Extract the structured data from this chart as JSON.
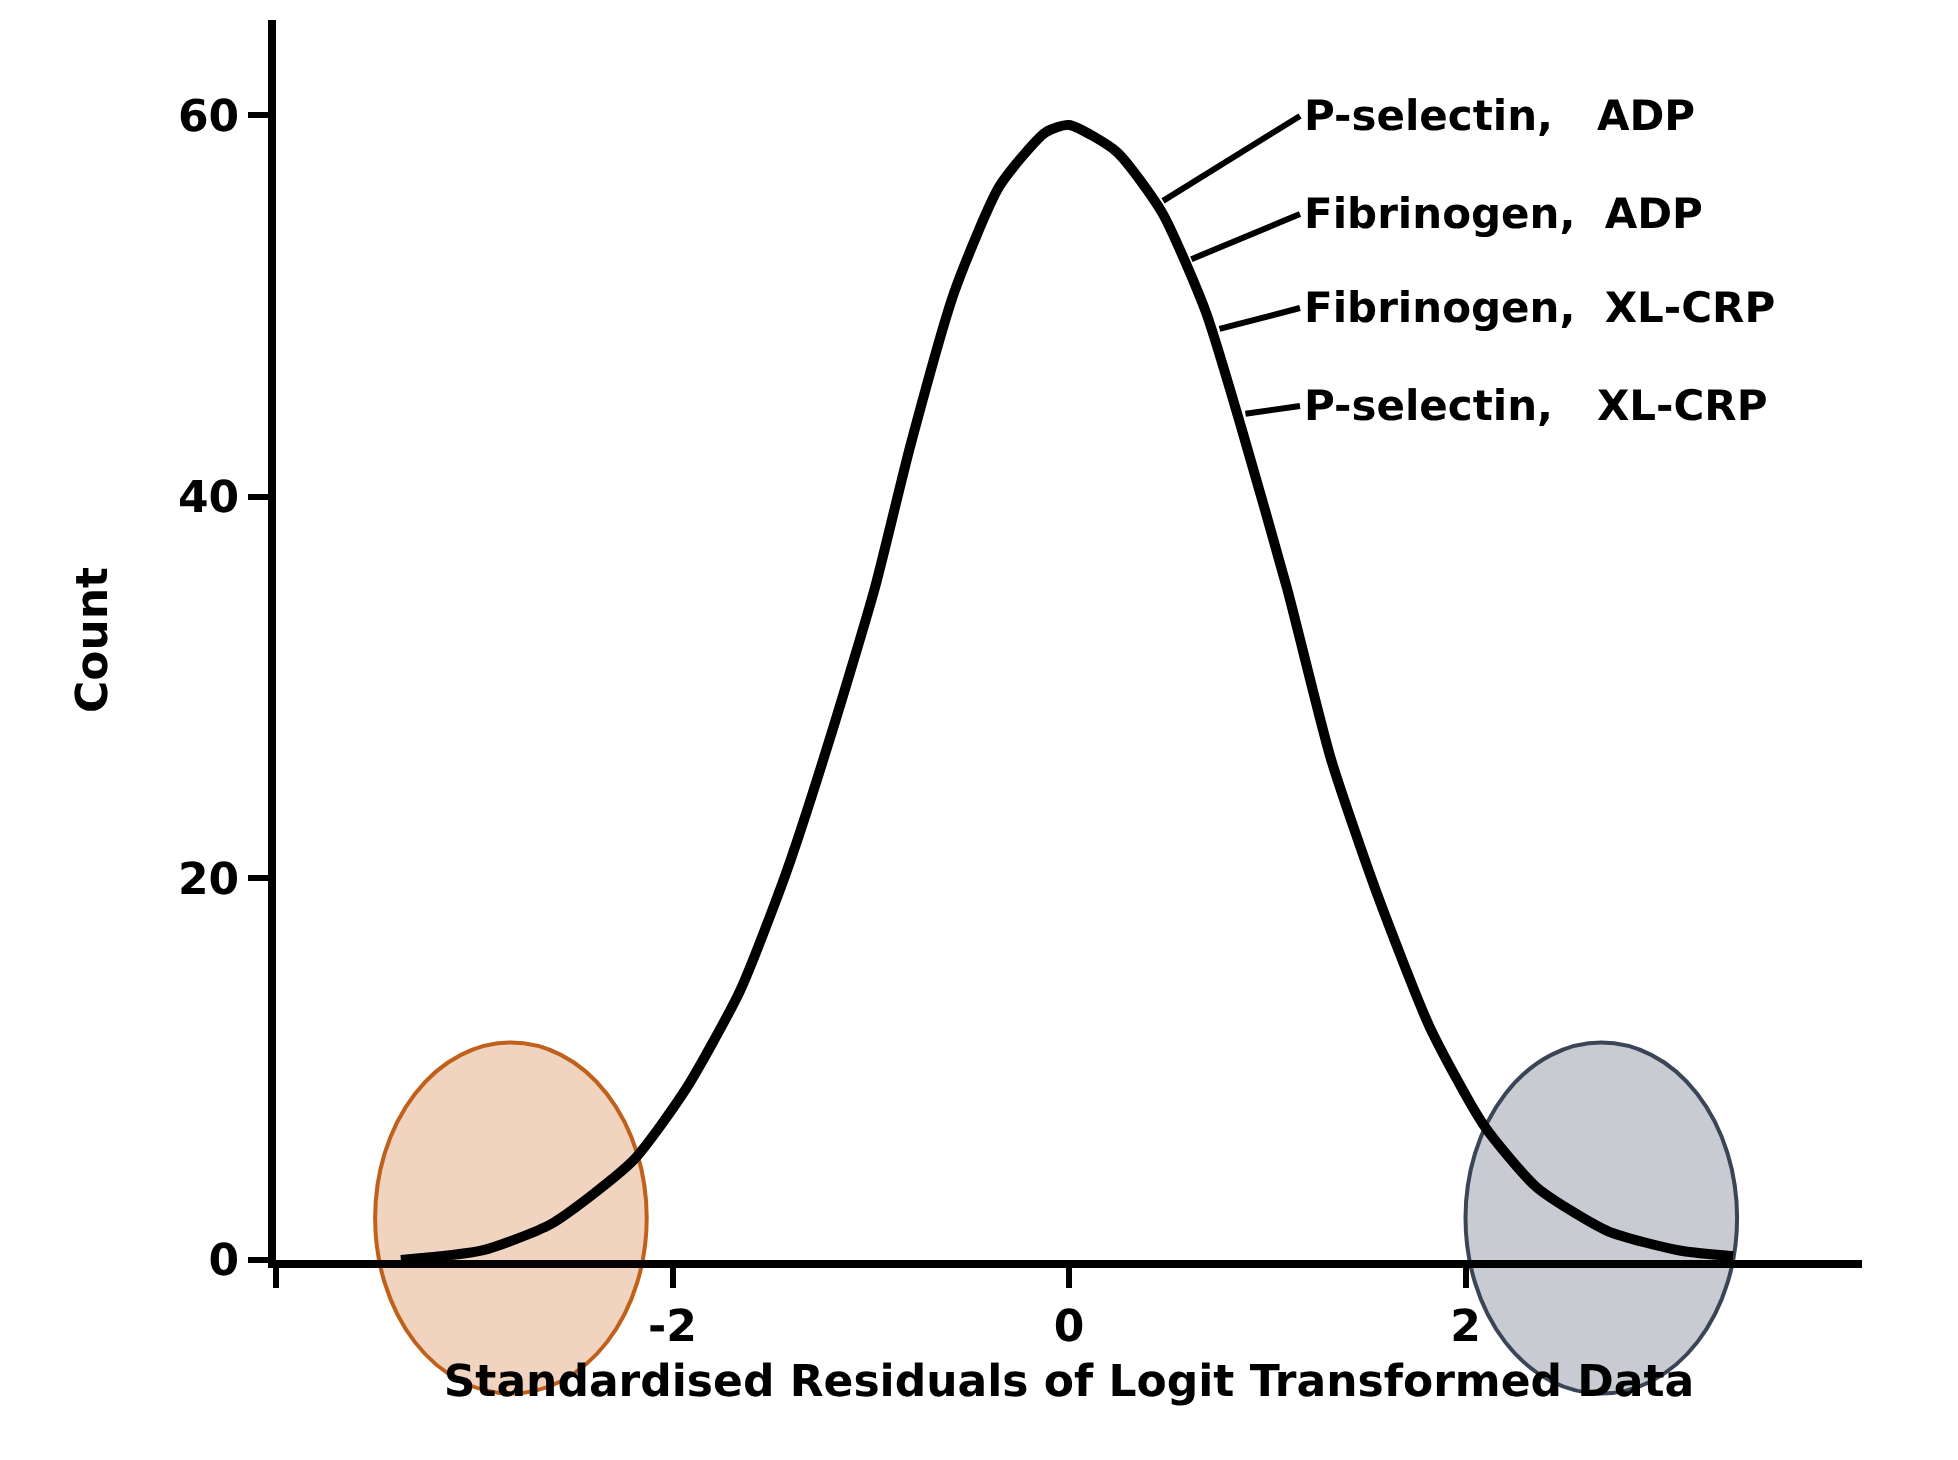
{
  "chart_data": {
    "type": "line",
    "xlabel": "Standardised Residuals of Logit Transformed Data",
    "ylabel": "Count",
    "x": [
      -3.37,
      -2.96,
      -2.61,
      -2.2,
      -1.93,
      -1.66,
      -1.43,
      -1.21,
      -0.98,
      -0.8,
      -0.58,
      -0.35,
      -0.12,
      0,
      0.24,
      0.47,
      0.69,
      0.87,
      1.1,
      1.32,
      1.55,
      1.82,
      2.09,
      2.36,
      2.72,
      3.08,
      3.35
    ],
    "series": [
      {
        "color": "#000000",
        "values": [
          0,
          0.5,
          1.9,
          5.2,
          9.0,
          14.1,
          20.2,
          27.2,
          35.2,
          42.7,
          50.7,
          56.3,
          59.1,
          59.5,
          58.1,
          54.9,
          49.7,
          43.6,
          35.2,
          26.3,
          19.3,
          12.2,
          7.1,
          3.8,
          1.5,
          0.5,
          0.2
        ]
      }
    ],
    "xlim": [
      -4,
      4
    ],
    "ylim": [
      0,
      65
    ],
    "xticks": [
      {
        "value": -4,
        "label": null
      },
      -2,
      0,
      2
    ],
    "yticks": [
      0,
      20,
      40,
      60
    ],
    "grid": false,
    "marker": "none",
    "line_style": "solid",
    "annotations": [
      {
        "text": "P-selectin,   ADP",
        "x": 0.44,
        "y": 55.3
      },
      {
        "text": "Fibrinogen,  ADP",
        "x": 0.58,
        "y": 52.3
      },
      {
        "text": "Fibrinogen,  XL-CRP",
        "x": 0.72,
        "y": 48.7
      },
      {
        "text": "P-selectin,   XL-CRP",
        "x": 0.85,
        "y": 44.3
      }
    ]
  }
}
